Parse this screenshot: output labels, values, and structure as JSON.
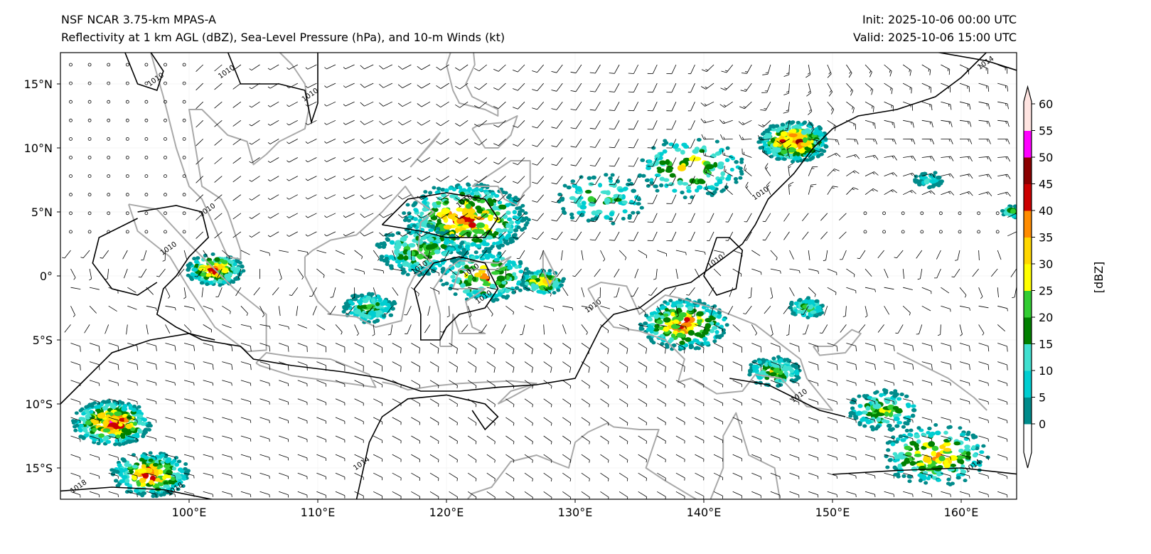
{
  "header": {
    "title_line1": "NSF NCAR 3.75-km MPAS-A",
    "title_line2": "Reflectivity at 1 km AGL (dBZ), Sea-Level Pressure (hPa), and 10-m Winds (kt)",
    "init": "Init: 2025-10-06 00:00 UTC",
    "valid": "Valid: 2025-10-06 15:00 UTC"
  },
  "map": {
    "lon_range": [
      90,
      164.3
    ],
    "lat_range": [
      -17.5,
      17.5
    ],
    "lat_ticks": [
      {
        "value": 15,
        "label": "15°N"
      },
      {
        "value": 10,
        "label": "10°N"
      },
      {
        "value": 5,
        "label": "5°N"
      },
      {
        "value": 0,
        "label": "0°"
      },
      {
        "value": -5,
        "label": "5°S"
      },
      {
        "value": -10,
        "label": "10°S"
      },
      {
        "value": -15,
        "label": "15°S"
      }
    ],
    "lon_ticks": [
      {
        "value": 100,
        "label": "100°E"
      },
      {
        "value": 110,
        "label": "110°E"
      },
      {
        "value": 120,
        "label": "120°E"
      },
      {
        "value": 130,
        "label": "130°E"
      },
      {
        "value": 140,
        "label": "140°E"
      },
      {
        "value": 150,
        "label": "150°E"
      },
      {
        "value": 160,
        "label": "160°E"
      }
    ],
    "contour_labels": [
      {
        "text": "1010",
        "lon": 97.5,
        "lat": 15.2
      },
      {
        "text": "1010",
        "lon": 103.0,
        "lat": 15.8
      },
      {
        "text": "1010",
        "lon": 109.5,
        "lat": 14.0
      },
      {
        "text": "1010",
        "lon": 101.5,
        "lat": 5.0
      },
      {
        "text": "1010",
        "lon": 98.5,
        "lat": 2.0
      },
      {
        "text": "1010",
        "lon": 118.0,
        "lat": 0.5
      },
      {
        "text": "1010",
        "lon": 121.5,
        "lat": 5.7
      },
      {
        "text": "1010",
        "lon": 122.0,
        "lat": 0.3
      },
      {
        "text": "1010",
        "lon": 123.0,
        "lat": -1.8
      },
      {
        "text": "1010",
        "lon": 131.5,
        "lat": -2.5
      },
      {
        "text": "1010",
        "lon": 141.0,
        "lat": 1.0
      },
      {
        "text": "1010",
        "lon": 144.5,
        "lat": 6.3
      },
      {
        "text": "1010",
        "lon": 147.5,
        "lat": -9.5
      },
      {
        "text": "1014",
        "lon": 113.5,
        "lat": -14.8
      },
      {
        "text": "1014",
        "lon": 162.0,
        "lat": 16.5
      },
      {
        "text": "1014",
        "lon": 161.0,
        "lat": -15.0
      },
      {
        "text": "1018",
        "lon": 91.5,
        "lat": -16.6
      },
      {
        "text": "1018",
        "lon": 99.0,
        "lat": -16.8
      }
    ],
    "echo_clusters": [
      {
        "lon": 121.5,
        "lat": 4.5,
        "spread": 3.5,
        "count": 420,
        "max_dbz": 45
      },
      {
        "lon": 118.0,
        "lat": 2.0,
        "spread": 2.5,
        "count": 200,
        "max_dbz": 30
      },
      {
        "lon": 123.0,
        "lat": 0.0,
        "spread": 2.5,
        "count": 180,
        "max_dbz": 40
      },
      {
        "lon": 147.0,
        "lat": 10.5,
        "spread": 2.0,
        "count": 320,
        "max_dbz": 50
      },
      {
        "lon": 138.5,
        "lat": -3.8,
        "spread": 2.5,
        "count": 260,
        "max_dbz": 45
      },
      {
        "lon": 102.0,
        "lat": 0.5,
        "spread": 1.6,
        "count": 150,
        "max_dbz": 45
      },
      {
        "lon": 94.0,
        "lat": -11.5,
        "spread": 2.2,
        "count": 300,
        "max_dbz": 50
      },
      {
        "lon": 97.0,
        "lat": -15.5,
        "spread": 2.2,
        "count": 220,
        "max_dbz": 45
      },
      {
        "lon": 127.5,
        "lat": -0.5,
        "spread": 1.2,
        "count": 90,
        "max_dbz": 45
      },
      {
        "lon": 114.0,
        "lat": -2.5,
        "spread": 1.5,
        "count": 120,
        "max_dbz": 25
      },
      {
        "lon": 145.5,
        "lat": -7.5,
        "spread": 1.5,
        "count": 110,
        "max_dbz": 30
      },
      {
        "lon": 154.0,
        "lat": -10.5,
        "spread": 2.0,
        "count": 120,
        "max_dbz": 30
      },
      {
        "lon": 158.0,
        "lat": -14.0,
        "spread": 3.0,
        "count": 200,
        "max_dbz": 40
      },
      {
        "lon": 148.0,
        "lat": -2.5,
        "spread": 1.0,
        "count": 60,
        "max_dbz": 25
      },
      {
        "lon": 157.5,
        "lat": 7.5,
        "spread": 0.8,
        "count": 40,
        "max_dbz": 15
      },
      {
        "lon": 139.0,
        "lat": 8.5,
        "spread": 3.0,
        "count": 140,
        "max_dbz": 35
      },
      {
        "lon": 132.0,
        "lat": 6.0,
        "spread": 2.5,
        "count": 90,
        "max_dbz": 25
      },
      {
        "lon": 164.0,
        "lat": 5.0,
        "spread": 0.6,
        "count": 40,
        "max_dbz": 30
      }
    ]
  },
  "colorbar": {
    "label": "[dBZ]",
    "ticks": [
      "0",
      "5",
      "10",
      "15",
      "20",
      "25",
      "30",
      "35",
      "40",
      "45",
      "50",
      "55",
      "60"
    ],
    "colors": [
      "#008b8b",
      "#00ced1",
      "#40e0d0",
      "#008000",
      "#32cd32",
      "#ffff00",
      "#ffd700",
      "#ff8c00",
      "#cc0000",
      "#8b0000",
      "#ff00ff",
      "#ffe4e1"
    ],
    "under_color": "#ffffff",
    "over_color": "#ffe4e1"
  }
}
